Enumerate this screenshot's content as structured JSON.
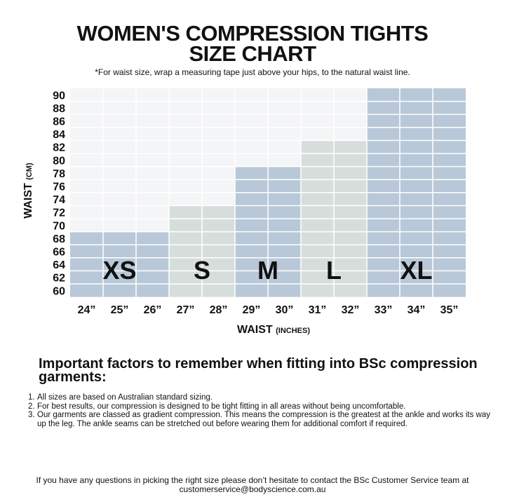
{
  "title_line1": "WOMEN'S COMPRESSION TIGHTS",
  "title_line2": "SIZE CHART",
  "subtitle": "*For waist size, wrap a measuring tape just above your hips, to the natural waist line.",
  "chart_data": {
    "type": "table",
    "y_axis": {
      "title": "WAIST",
      "unit": "(CM)",
      "ticks": [
        90,
        88,
        86,
        84,
        82,
        80,
        78,
        76,
        74,
        72,
        70,
        68,
        66,
        64,
        62,
        60
      ]
    },
    "x_axis": {
      "title": "WAIST",
      "unit": "(INCHES)",
      "ticks": [
        "24”",
        "25”",
        "26”",
        "27”",
        "28”",
        "29”",
        "30”",
        "31”",
        "32”",
        "33”",
        "34”",
        "35”"
      ]
    },
    "sizes": [
      {
        "label": "XS",
        "cols": [
          0,
          2
        ],
        "max_cm": 68,
        "color": "#b8c8d8"
      },
      {
        "label": "S",
        "cols": [
          3,
          4
        ],
        "max_cm": 72,
        "color": "#d6dedc"
      },
      {
        "label": "M",
        "cols": [
          5,
          6
        ],
        "max_cm": 78,
        "color": "#b8c8d8"
      },
      {
        "label": "L",
        "cols": [
          7,
          8
        ],
        "max_cm": 82,
        "color": "#d6dedc"
      },
      {
        "label": "XL",
        "cols": [
          9,
          11
        ],
        "max_cm": 90,
        "color": "#b8c8d8"
      }
    ],
    "background_color": "#f4f5f7",
    "grid_color": "#ffffff"
  },
  "important": {
    "heading": "Important factors to remember when fitting into BSc compression garments:",
    "notes": [
      {
        "num": "1.",
        "text": "All sizes are based on Australian standard sizing."
      },
      {
        "num": "2.",
        "text": "For best results, our compression is designed to be tight fitting in all areas without being uncomfortable."
      },
      {
        "num": "3.",
        "text": "Our garments are classed as gradient compression. This means the compression is the greatest at the ankle and works its way up the leg. The ankle seams can be stretched out before wearing them for additional comfort if required."
      }
    ]
  },
  "footer": {
    "line1": "If you have any questions in picking the right size please don’t hesitate to contact the BSc Customer Service team at",
    "line2": "customerservice@bodyscience.com.au"
  }
}
